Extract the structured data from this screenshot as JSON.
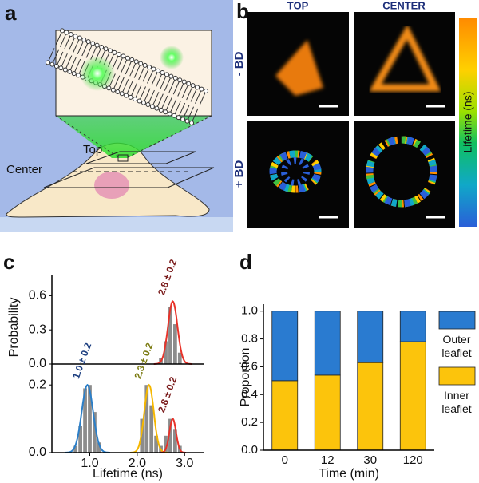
{
  "panel_labels": [
    "a",
    "b",
    "c",
    "d"
  ],
  "diagram": {
    "top_label": "Top",
    "center_label": "Center"
  },
  "images": {
    "columns": [
      "TOP",
      "CENTER"
    ],
    "rows": [
      "- BD",
      "+ BD"
    ],
    "colorbar_label": "Lifetime (ns)"
  },
  "chart_data": [
    {
      "type": "histogram",
      "ylabel": "Probability",
      "xlim": [
        0.2,
        3.4
      ],
      "ylim": [
        0,
        0.75
      ],
      "yticks": [
        {
          "value": 0,
          "label": "0.0"
        },
        {
          "value": 0.3,
          "label": "0.3"
        },
        {
          "value": 0.6,
          "label": "0.6"
        }
      ],
      "x": [
        2.5,
        2.6,
        2.7,
        2.8,
        2.9
      ],
      "values": [
        0.05,
        0.2,
        0.5,
        0.35,
        0.1
      ],
      "bar_width": 0.08,
      "bar_color": "#8c8c8c",
      "fits": [
        {
          "label": "2.8 ± 0.2",
          "color": "#e8332a",
          "label_color": "#7a1b1b",
          "mean": 2.75,
          "sd": 0.1,
          "peak": 0.55
        }
      ]
    },
    {
      "type": "histogram",
      "xlabel": "Lifetime (ns)",
      "xlim": [
        0.2,
        3.4
      ],
      "ylim": [
        0,
        0.25
      ],
      "xticks": [
        {
          "value": 1,
          "label": "1.0"
        },
        {
          "value": 2,
          "label": "2.0"
        },
        {
          "value": 3,
          "label": "3.0"
        }
      ],
      "yticks": [
        {
          "value": 0,
          "label": "0.0"
        },
        {
          "value": 0.2,
          "label": "0.2"
        }
      ],
      "x": [
        0.7,
        0.8,
        0.9,
        1.0,
        1.1,
        1.2,
        2.1,
        2.2,
        2.3,
        2.4,
        2.5,
        2.6,
        2.7,
        2.8,
        2.9
      ],
      "values": [
        0.02,
        0.08,
        0.19,
        0.2,
        0.12,
        0.03,
        0.1,
        0.2,
        0.14,
        0.05,
        0.02,
        0.05,
        0.1,
        0.07,
        0.02
      ],
      "bar_width": 0.08,
      "bar_color": "#8c8c8c",
      "fits": [
        {
          "label": "1.0 ± 0.2",
          "color": "#2b7fc9",
          "label_color": "#1d3f80",
          "mean": 0.95,
          "sd": 0.12,
          "peak": 0.2
        },
        {
          "label": "2.3 ± 0.2",
          "color": "#f5b700",
          "label_color": "#7a7a10",
          "mean": 2.25,
          "sd": 0.1,
          "peak": 0.2
        },
        {
          "label": "2.8 ± 0.2",
          "color": "#e8332a",
          "label_color": "#7a1b1b",
          "mean": 2.75,
          "sd": 0.07,
          "peak": 0.1
        }
      ]
    },
    {
      "type": "bar",
      "stacked": true,
      "xlabel": "Time (min)",
      "ylabel": "Proportion",
      "categories": [
        "0",
        "12",
        "30",
        "120"
      ],
      "ylim": [
        0,
        1.05
      ],
      "yticks": [
        {
          "value": 0,
          "label": "0.0"
        },
        {
          "value": 0.2,
          "label": "0.2"
        },
        {
          "value": 0.4,
          "label": "0.4"
        },
        {
          "value": 0.6,
          "label": "0.6"
        },
        {
          "value": 0.8,
          "label": "0.8"
        },
        {
          "value": 1,
          "label": "1.0"
        }
      ],
      "series": [
        {
          "name": "Inner leaflet",
          "color": "#fcc40c",
          "values": [
            0.5,
            0.54,
            0.63,
            0.78
          ]
        },
        {
          "name": "Outer leaflet",
          "color": "#2a7bd0",
          "values": [
            0.5,
            0.46,
            0.37,
            0.22
          ]
        }
      ]
    }
  ]
}
